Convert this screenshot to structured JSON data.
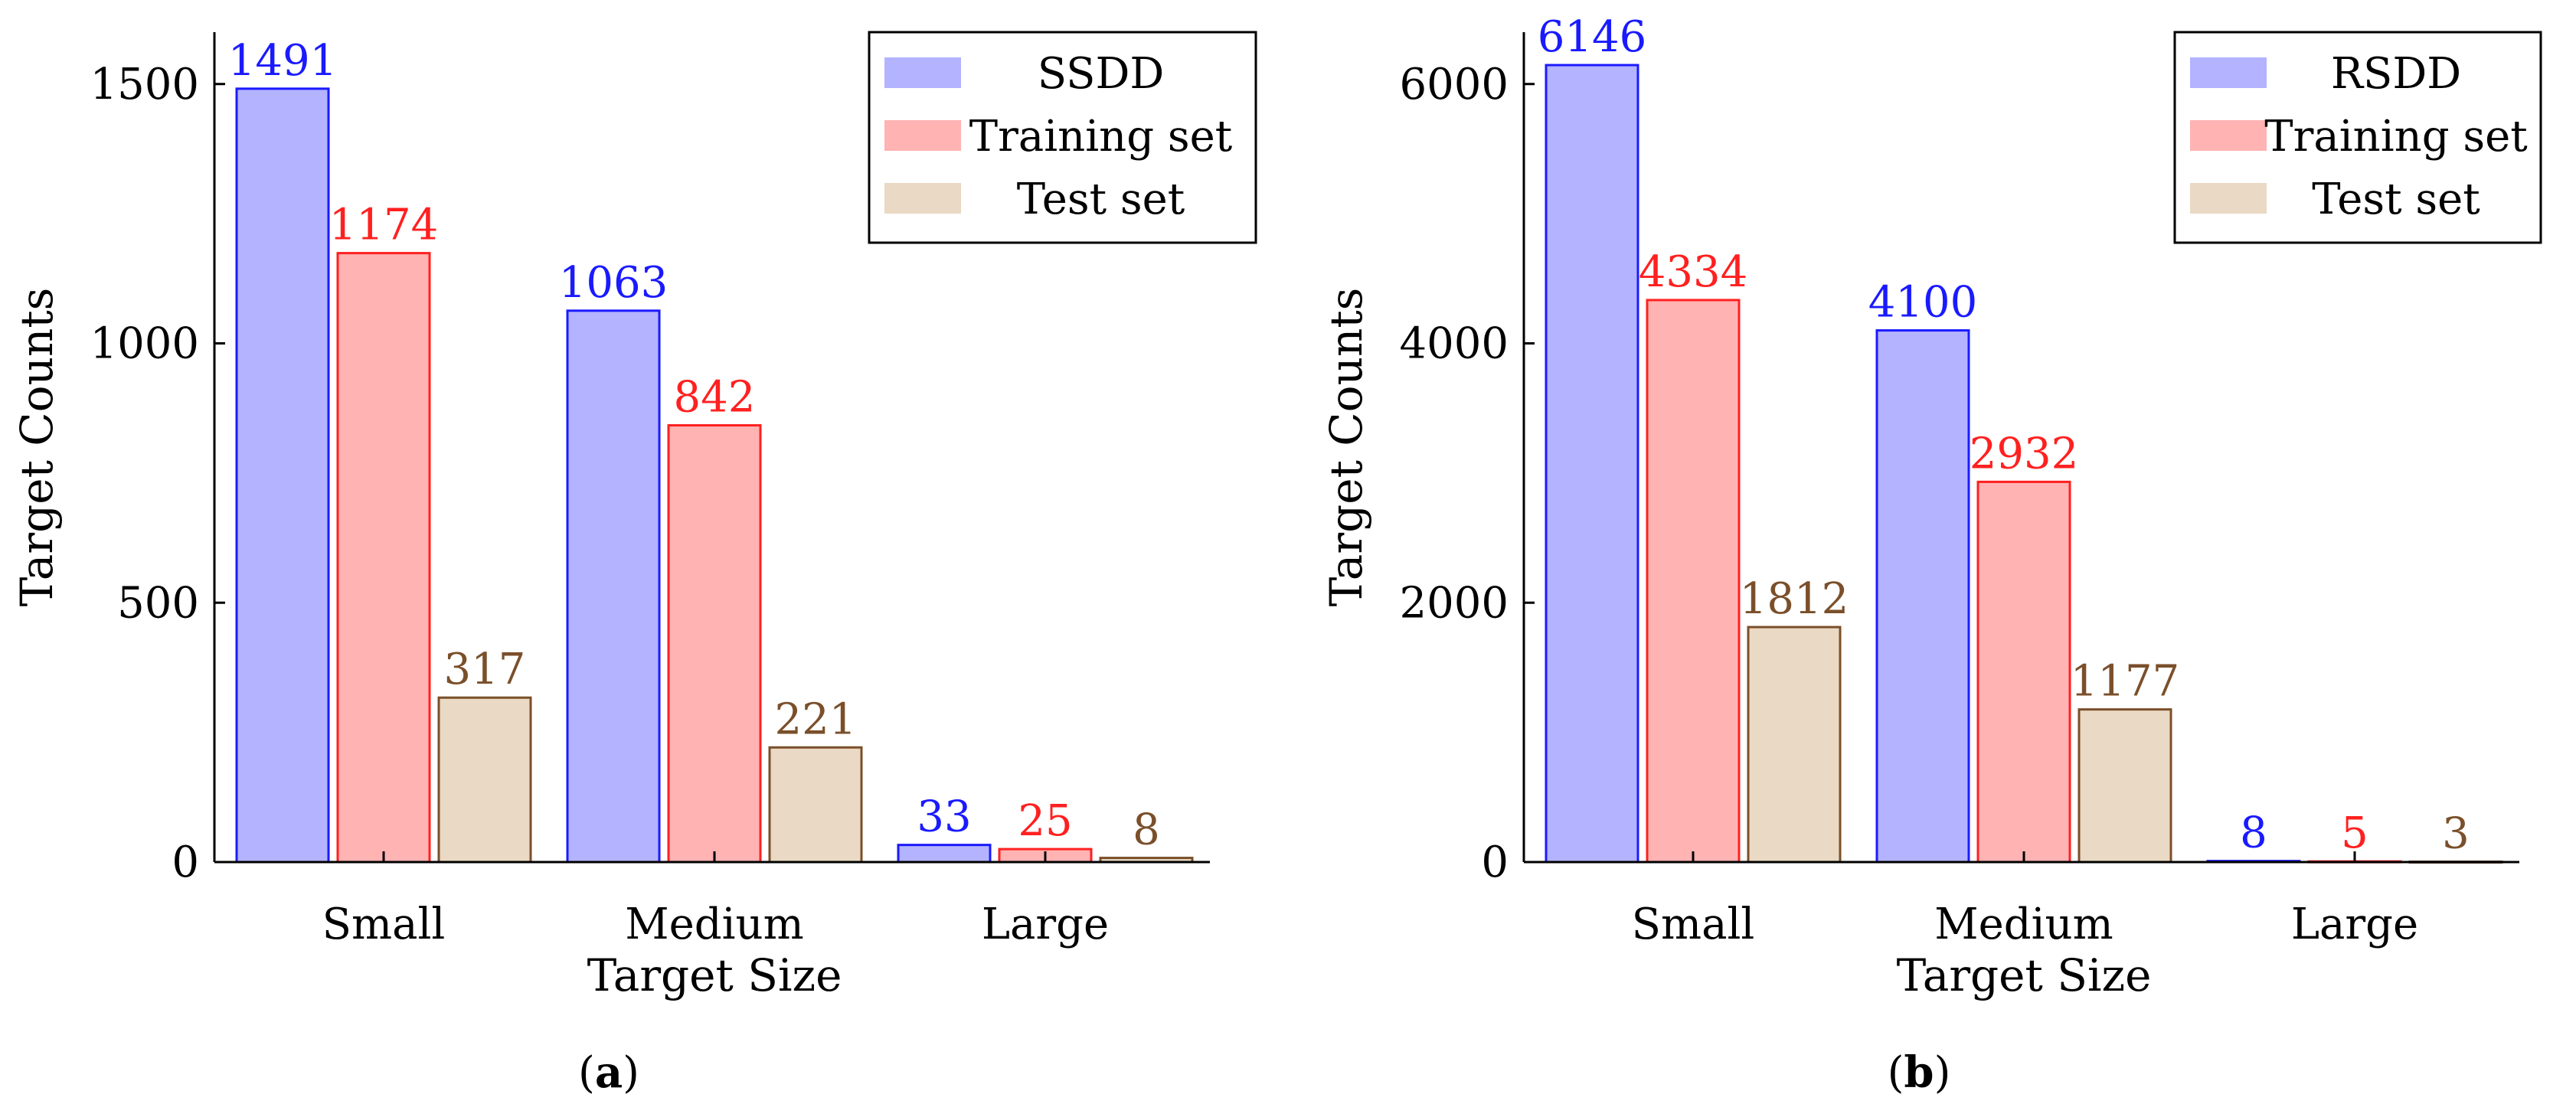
{
  "colors": {
    "series_fill": [
      "#b3b3ff",
      "#ffb3b3",
      "#ead9c4"
    ],
    "series_stroke": [
      "#1a1aff",
      "#ff2020",
      "#7a4f2a"
    ]
  },
  "chart_data": [
    {
      "type": "bar",
      "caption": "(a)",
      "caption_letter": "a",
      "xlabel": "Target Size",
      "ylabel": "Target Counts",
      "categories": [
        "Small",
        "Medium",
        "Large"
      ],
      "yticks": [
        0,
        500,
        1000,
        1500
      ],
      "ylim": [
        0,
        1600
      ],
      "legend_position": "top-right",
      "series": [
        {
          "name": "SSDD",
          "values": [
            1491,
            1063,
            33
          ]
        },
        {
          "name": "Training set",
          "values": [
            1174,
            842,
            25
          ]
        },
        {
          "name": "Test set",
          "values": [
            317,
            221,
            8
          ]
        }
      ]
    },
    {
      "type": "bar",
      "caption": "(b)",
      "caption_letter": "b",
      "xlabel": "Target Size",
      "ylabel": "Target Counts",
      "categories": [
        "Small",
        "Medium",
        "Large"
      ],
      "yticks": [
        0,
        2000,
        4000,
        6000
      ],
      "ylim": [
        0,
        6400
      ],
      "legend_position": "top-right",
      "series": [
        {
          "name": "RSDD",
          "values": [
            6146,
            4100,
            8
          ]
        },
        {
          "name": "Training set",
          "values": [
            4334,
            2932,
            5
          ]
        },
        {
          "name": "Test set",
          "values": [
            1812,
            1177,
            3
          ]
        }
      ]
    }
  ]
}
